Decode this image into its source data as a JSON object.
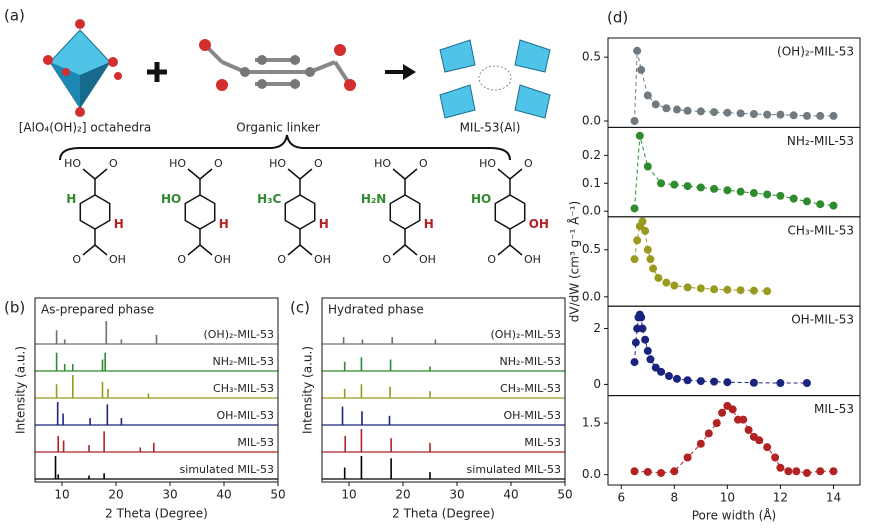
{
  "scheme": {
    "panel": "(a)",
    "node_label": "[AlO₄(OH)₂] octahedra",
    "linker_label": "Organic linker",
    "product_label": "MIL-53(Al)",
    "linkers": [
      {
        "top_oh": "HO",
        "top_o": "O",
        "left": "H",
        "right": "H",
        "bottom_o": "O",
        "bottom_oh": "OH"
      },
      {
        "top_oh": "HO",
        "top_o": "O",
        "left": "HO",
        "right": "H",
        "bottom_o": "O",
        "bottom_oh": "OH"
      },
      {
        "top_oh": "HO",
        "top_o": "O",
        "left": "H₃C",
        "right": "H",
        "bottom_o": "O",
        "bottom_oh": "OH"
      },
      {
        "top_oh": "HO",
        "top_o": "O",
        "left": "H₂N",
        "right": "H",
        "bottom_o": "O",
        "bottom_oh": "OH"
      },
      {
        "top_oh": "HO",
        "top_o": "O",
        "left": "HO",
        "right": "OH",
        "bottom_o": "O",
        "bottom_oh": "OH"
      }
    ]
  },
  "chart_data": [
    {
      "type": "stick",
      "panel": "(b)",
      "title": "As-prepared phase",
      "x_label": "2 Theta (Degree)",
      "y_label": "Intensity (a.u.)",
      "xlim": [
        5,
        50
      ],
      "xticks": [
        10,
        20,
        30,
        40,
        50
      ],
      "series": [
        {
          "name": "(OH)₂-MIL-53",
          "color": "#707070",
          "x": [
            9.0,
            10.5,
            18.2,
            21,
            27.5
          ],
          "values": [
            0.6,
            0.2,
            1,
            0.2,
            0.4
          ]
        },
        {
          "name": "NH₂-MIL-53",
          "color": "#2e8b2e",
          "x": [
            9.0,
            10.5,
            12,
            17.5,
            18
          ],
          "values": [
            0.8,
            0.3,
            0.3,
            0.5,
            0.8
          ]
        },
        {
          "name": "CH₃-MIL-53",
          "color": "#9a9a20",
          "x": [
            9.0,
            12,
            17.5,
            18.5,
            26
          ],
          "values": [
            0.6,
            1,
            0.7,
            0.4,
            0.2
          ]
        },
        {
          "name": "OH-MIL-53",
          "color": "#1a237e",
          "x": [
            9.2,
            10.2,
            15.2,
            18.4,
            21
          ],
          "values": [
            1,
            0.5,
            0.3,
            0.9,
            0.3
          ]
        },
        {
          "name": "MIL-53",
          "color": "#b22222",
          "x": [
            9.3,
            10.3,
            15,
            17.8,
            24.5,
            27
          ],
          "values": [
            0.7,
            0.5,
            0.3,
            0.9,
            0.2,
            0.4
          ]
        },
        {
          "name": "simulated MIL-53",
          "color": "#000000",
          "x": [
            8.8,
            9.3,
            15,
            17.8
          ],
          "values": [
            1,
            0.2,
            0.15,
            0.25
          ]
        }
      ]
    },
    {
      "type": "stick",
      "panel": "(c)",
      "title": "Hydrated phase",
      "x_label": "2 Theta (Degree)",
      "y_label": "Intensity (a.u.)",
      "xlim": [
        5,
        50
      ],
      "xticks": [
        10,
        20,
        30,
        40,
        50
      ],
      "series": [
        {
          "name": "(OH)₂-MIL-53",
          "color": "#707070",
          "x": [
            9,
            12.5,
            18,
            26
          ],
          "values": [
            0.3,
            0.2,
            0.3,
            0.2
          ]
        },
        {
          "name": "NH₂-MIL-53",
          "color": "#2e8b2e",
          "x": [
            9.2,
            12.3,
            17.7,
            25
          ],
          "values": [
            0.4,
            0.6,
            0.5,
            0.2
          ]
        },
        {
          "name": "CH₃-MIL-53",
          "color": "#9a9a20",
          "x": [
            9.2,
            12.3,
            17.6,
            25
          ],
          "values": [
            0.4,
            0.6,
            0.5,
            0.3
          ]
        },
        {
          "name": "OH-MIL-53",
          "color": "#1a237e",
          "x": [
            8.8,
            12.4,
            17.5
          ],
          "values": [
            0.8,
            0.6,
            0.4
          ]
        },
        {
          "name": "MIL-53",
          "color": "#b22222",
          "x": [
            9.3,
            12.3,
            17.8,
            25
          ],
          "values": [
            0.7,
            1,
            0.6,
            0.4
          ]
        },
        {
          "name": "simulated MIL-53",
          "color": "#000000",
          "x": [
            9.2,
            12.3,
            17.8,
            25
          ],
          "values": [
            0.5,
            1,
            0.9,
            0.3
          ]
        }
      ]
    },
    {
      "type": "line",
      "panel": "(d)",
      "x_label": "Pore width (Å)",
      "y_label": "dV/dW (cm³ g⁻¹ Å⁻¹)",
      "xlim": [
        5.5,
        15
      ],
      "xticks": [
        6,
        8,
        10,
        12,
        14
      ],
      "series": [
        {
          "name": "(OH)₂-MIL-53",
          "color": "#707a80",
          "ylim": [
            -0.05,
            0.65
          ],
          "yticks": [
            {
              "value": 0,
              "label": "0.0"
            },
            0.5
          ],
          "x": [
            6.5,
            6.6,
            6.75,
            7.0,
            7.3,
            7.7,
            8.1,
            8.5,
            9,
            9.5,
            10,
            10.5,
            11,
            11.5,
            12,
            12.5,
            13,
            13.5,
            14
          ],
          "values": [
            0.0,
            0.55,
            0.4,
            0.2,
            0.13,
            0.1,
            0.09,
            0.08,
            0.075,
            0.07,
            0.065,
            0.06,
            0.055,
            0.05,
            0.05,
            0.045,
            0.04,
            0.04,
            0.04
          ]
        },
        {
          "name": "NH₂-MIL-53",
          "color": "#2e8b2e",
          "ylim": [
            -0.02,
            0.3
          ],
          "yticks": [
            {
              "value": 0,
              "label": "0.0"
            },
            0.1,
            0.2
          ],
          "x": [
            6.5,
            6.7,
            7.0,
            7.5,
            8,
            8.5,
            9,
            9.5,
            10,
            10.5,
            11,
            11.5,
            12,
            12.5,
            13,
            13.5,
            14
          ],
          "values": [
            0.01,
            0.27,
            0.16,
            0.1,
            0.095,
            0.09,
            0.085,
            0.08,
            0.075,
            0.07,
            0.065,
            0.06,
            0.055,
            0.045,
            0.035,
            0.025,
            0.02
          ]
        },
        {
          "name": "CH₃-MIL-53",
          "color": "#9a9a20",
          "ylim": [
            -0.1,
            0.85
          ],
          "yticks": [
            {
              "value": 0,
              "label": "0.0"
            },
            0.5
          ],
          "x": [
            6.5,
            6.6,
            6.7,
            6.8,
            6.9,
            7.0,
            7.1,
            7.2,
            7.4,
            7.7,
            8,
            8.5,
            9,
            9.5,
            10,
            10.5,
            11,
            11.5
          ],
          "values": [
            0.4,
            0.6,
            0.75,
            0.8,
            0.7,
            0.5,
            0.4,
            0.3,
            0.2,
            0.15,
            0.12,
            0.1,
            0.09,
            0.08,
            0.075,
            0.07,
            0.065,
            0.06
          ]
        },
        {
          "name": "OH-MIL-53",
          "color": "#1a237e",
          "ylim": [
            -0.4,
            2.8
          ],
          "yticks": [
            0,
            2
          ],
          "x": [
            6.5,
            6.55,
            6.6,
            6.65,
            6.7,
            6.75,
            6.8,
            6.9,
            7.0,
            7.1,
            7.3,
            7.5,
            7.8,
            8.1,
            8.5,
            9,
            9.5,
            10,
            11,
            12,
            13
          ],
          "values": [
            0.8,
            1.5,
            2.0,
            2.4,
            2.5,
            2.4,
            2.0,
            1.6,
            1.2,
            0.9,
            0.6,
            0.45,
            0.3,
            0.2,
            0.15,
            0.12,
            0.1,
            0.08,
            0.06,
            0.05,
            0.05
          ]
        },
        {
          "name": "MIL-53",
          "color": "#b22222",
          "ylim": [
            -0.3,
            2.3
          ],
          "yticks": [
            {
              "value": 0,
              "label": "0.0"
            },
            1.5
          ],
          "x": [
            6.5,
            7,
            7.5,
            8,
            8.5,
            9,
            9.3,
            9.6,
            9.8,
            10,
            10.2,
            10.4,
            10.6,
            10.8,
            11,
            11.2,
            11.5,
            11.8,
            12,
            12.3,
            12.6,
            13,
            13.5,
            14
          ],
          "values": [
            0.1,
            0.08,
            0.05,
            0.1,
            0.5,
            0.9,
            1.2,
            1.5,
            1.8,
            2.0,
            1.9,
            1.6,
            1.6,
            1.3,
            1.1,
            1.0,
            0.8,
            0.5,
            0.2,
            0.1,
            0.1,
            0.05,
            0.1,
            0.1
          ]
        }
      ]
    }
  ]
}
